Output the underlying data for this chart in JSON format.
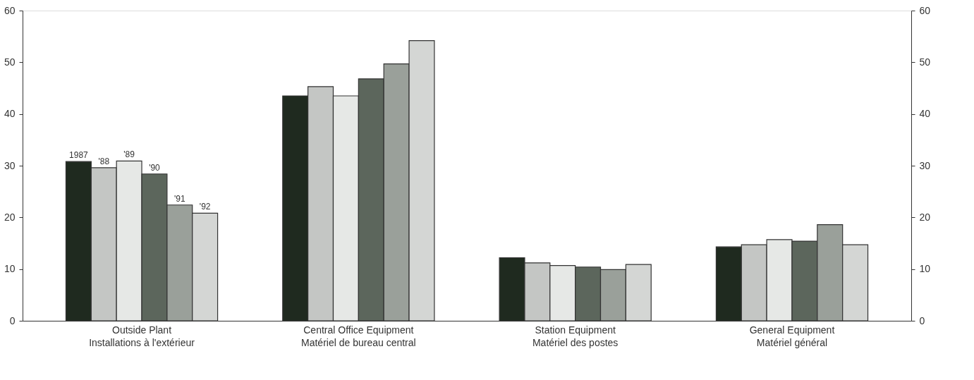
{
  "chart_data": {
    "type": "bar",
    "categories": [
      "Outside Plant\nInstallations à l'extérieur",
      "Central Office Equipment\nMatériel de bureau central",
      "Station Equipment\nMatériel des postes",
      "General Equipment\nMatériel général"
    ],
    "series": [
      {
        "name": "1987",
        "color": "#1f2a1f",
        "values": [
          30.8,
          43.5,
          12.2,
          14.3
        ]
      },
      {
        "name": "'88",
        "color": "#c4c6c4",
        "values": [
          29.6,
          45.3,
          11.2,
          14.7
        ]
      },
      {
        "name": "'89",
        "color": "#e6e8e6",
        "values": [
          30.9,
          43.5,
          10.7,
          15.7
        ]
      },
      {
        "name": "'90",
        "color": "#5c665c",
        "values": [
          28.4,
          46.8,
          10.4,
          15.4
        ]
      },
      {
        "name": "'91",
        "color": "#9aa09a",
        "values": [
          22.4,
          49.7,
          9.9,
          18.6
        ]
      },
      {
        "name": "'92",
        "color": "#d4d6d4",
        "values": [
          20.8,
          54.2,
          10.9,
          14.7
        ]
      }
    ],
    "ylim": [
      0,
      60
    ],
    "yticks": [
      0,
      10,
      20,
      30,
      40,
      50,
      60
    ],
    "y2lim": [
      0,
      60
    ],
    "y2ticks": [
      0,
      10,
      20,
      30,
      40,
      50,
      60
    ],
    "grid": false
  }
}
